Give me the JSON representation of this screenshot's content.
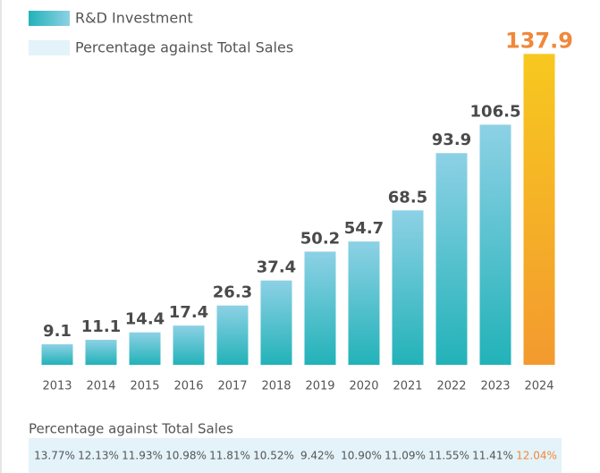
{
  "chart_data": {
    "type": "bar",
    "categories": [
      "2013",
      "2014",
      "2015",
      "2016",
      "2017",
      "2018",
      "2019",
      "2020",
      "2021",
      "2022",
      "2023",
      "2024"
    ],
    "series": [
      {
        "name": "R&D Investment",
        "color": [
          "#8dd1e5",
          "#22b2b8"
        ],
        "values": [
          9.1,
          11.1,
          14.4,
          17.4,
          26.3,
          37.4,
          50.2,
          54.7,
          68.5,
          93.9,
          106.5,
          137.9
        ]
      },
      {
        "name": "Percentage against Total Sales",
        "color": "#e3f3f9",
        "values": [
          13.77,
          12.13,
          11.93,
          10.98,
          11.81,
          10.52,
          9.42,
          10.9,
          11.09,
          11.55,
          11.41,
          12.04
        ],
        "value_labels": [
          "13.77%",
          "12.13%",
          "11.93%",
          "10.98%",
          "11.81%",
          "10.52%",
          "9.42%",
          "10.90%",
          "11.09%",
          "11.55%",
          "11.41%",
          "12.04%"
        ]
      }
    ],
    "table_title": "Percentage against Total Sales",
    "highlight_index": 11,
    "highlight_color": [
      "#f7c81f",
      "#f39a2f"
    ],
    "highlight_label_color": "#f0883a",
    "ylim": [
      0,
      140
    ],
    "legend": "top-left"
  }
}
